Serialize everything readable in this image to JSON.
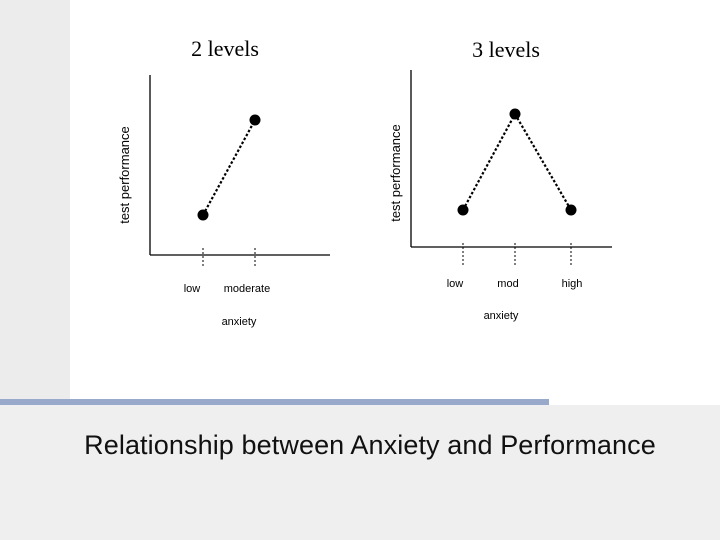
{
  "slide": {
    "title": "Relationship between Anxiety and Performance"
  },
  "colors": {
    "accent_bar": "#99a9cc",
    "panel_background": "#ececec",
    "ink": "#000000"
  },
  "chart_data": [
    {
      "type": "line",
      "title": "2 levels",
      "xlabel": "anxiety",
      "ylabel": "test performance",
      "categories": [
        "low",
        "moderate"
      ],
      "series": [
        {
          "values": [
            2,
            6
          ]
        }
      ],
      "ylim": [
        0,
        8
      ],
      "grid": false,
      "legend": "none"
    },
    {
      "type": "line",
      "title": "3 levels",
      "xlabel": "anxiety",
      "ylabel": "test performance",
      "categories": [
        "low",
        "mod",
        "high"
      ],
      "series": [
        {
          "values": [
            2,
            6,
            2
          ]
        }
      ],
      "ylim": [
        0,
        8
      ],
      "grid": false,
      "legend": "none"
    }
  ]
}
